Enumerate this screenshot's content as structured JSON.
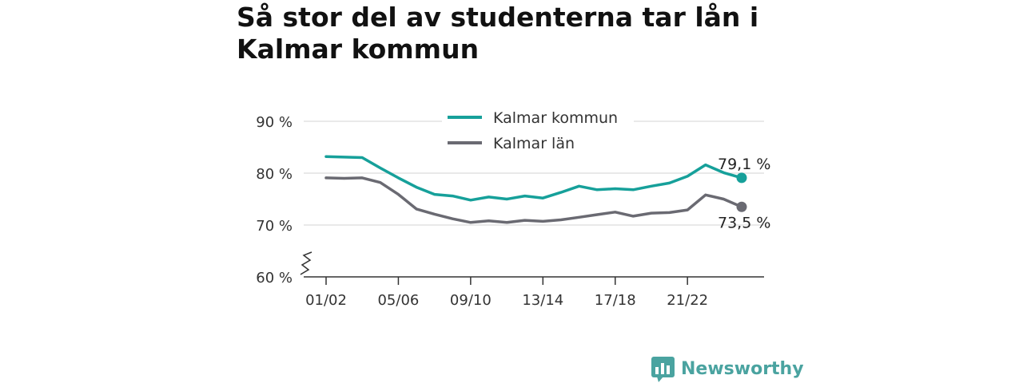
{
  "title": "Så stor del av studenterna tar lån i Kalmar kommun",
  "brand": {
    "name": "Newsworthy",
    "icon": "newsworthy-logo-icon",
    "color": "#4aa3a0"
  },
  "colors": {
    "kommun": "#16a09a",
    "lan": "#6a6a72",
    "grid": "#dcdcdc",
    "axis": "#333333"
  },
  "chart_data": {
    "type": "line",
    "title": "Så stor del av studenterna tar lån i Kalmar kommun",
    "xlabel": "",
    "ylabel": "",
    "x": [
      "01/02",
      "02/03",
      "03/04",
      "04/05",
      "05/06",
      "06/07",
      "07/08",
      "08/09",
      "09/10",
      "10/11",
      "11/12",
      "12/13",
      "13/14",
      "14/15",
      "15/16",
      "16/17",
      "17/18",
      "18/19",
      "19/20",
      "20/21",
      "21/22",
      "22/23",
      "23/24",
      "24/25"
    ],
    "xtick_labels": [
      "01/02",
      "05/06",
      "09/10",
      "13/14",
      "17/18",
      "21/22"
    ],
    "ylim": [
      60,
      90
    ],
    "yticks": [
      60,
      70,
      80,
      90
    ],
    "ytick_labels": [
      "60 %",
      "70 %",
      "80 %",
      "90 %"
    ],
    "y_axis_break": true,
    "grid": true,
    "legend_position": "top-center",
    "series": [
      {
        "name": "Kalmar kommun",
        "color": "#16a09a",
        "values": [
          83.2,
          83.1,
          83.0,
          81.0,
          79.1,
          77.3,
          75.9,
          75.6,
          74.8,
          75.4,
          75.0,
          75.6,
          75.2,
          76.3,
          77.5,
          76.8,
          77.0,
          76.8,
          77.5,
          78.1,
          79.4,
          81.6,
          80.1,
          79.1
        ],
        "end_label": "79,1 %"
      },
      {
        "name": "Kalmar län",
        "color": "#6a6a72",
        "values": [
          79.1,
          79.0,
          79.1,
          78.2,
          75.9,
          73.1,
          72.1,
          71.2,
          70.5,
          70.8,
          70.5,
          70.9,
          70.7,
          71.0,
          71.5,
          72.0,
          72.5,
          71.7,
          72.3,
          72.4,
          72.9,
          75.8,
          75.0,
          73.5
        ],
        "end_label": "73,5 %"
      }
    ]
  }
}
